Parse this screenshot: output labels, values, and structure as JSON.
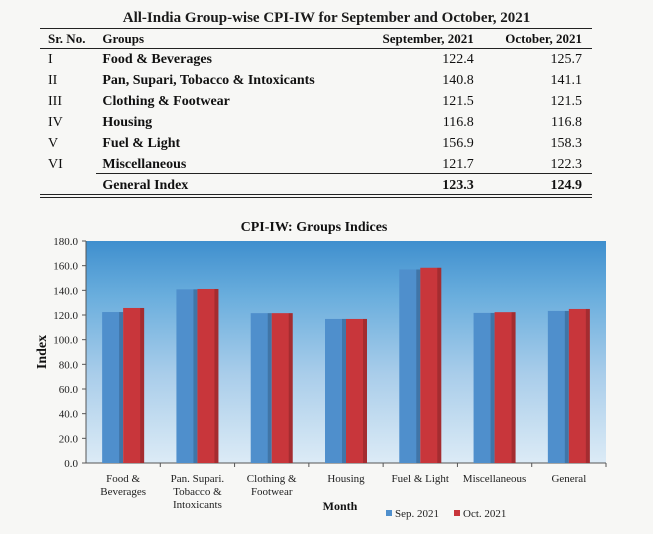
{
  "document": {
    "title": "All-India Group-wise CPI-IW for September and October, 2021"
  },
  "table": {
    "headers": [
      "Sr. No.",
      "Groups",
      "September, 2021",
      "October, 2021"
    ],
    "rows": [
      {
        "sr": "I",
        "group": "Food & Beverages",
        "sep": "122.4",
        "oct": "125.7"
      },
      {
        "sr": "II",
        "group": "Pan, Supari, Tobacco & Intoxicants",
        "sep": "140.8",
        "oct": "141.1"
      },
      {
        "sr": "III",
        "group": "Clothing & Footwear",
        "sep": "121.5",
        "oct": "121.5"
      },
      {
        "sr": "IV",
        "group": "Housing",
        "sep": "116.8",
        "oct": "116.8"
      },
      {
        "sr": "V",
        "group": "Fuel & Light",
        "sep": "156.9",
        "oct": "158.3"
      },
      {
        "sr": "VI",
        "group": "Miscellaneous",
        "sep": "121.7",
        "oct": "122.3"
      }
    ],
    "total": {
      "group": "General Index",
      "sep": "123.3",
      "oct": "124.9"
    }
  },
  "chart_data": {
    "type": "bar",
    "title": "CPI-IW: Groups Indices",
    "xlabel": "Month",
    "ylabel": "Index",
    "ylim": [
      0,
      180
    ],
    "yticks": [
      "0.0",
      "20.0",
      "40.0",
      "60.0",
      "80.0",
      "100.0",
      "120.0",
      "140.0",
      "160.0",
      "180.0"
    ],
    "categories": [
      [
        "Food &",
        "Beverages"
      ],
      [
        "Pan. Supari.",
        "Tobacco &",
        "Intoxicants"
      ],
      [
        "Clothing &",
        "Footwear"
      ],
      [
        "Housing"
      ],
      [
        "Fuel & Light"
      ],
      [
        "Miscellaneous"
      ],
      [
        "General"
      ]
    ],
    "series": [
      {
        "name": "Sep. 2021",
        "color": "#4f8fcc",
        "values": [
          122.4,
          140.8,
          121.5,
          116.8,
          156.9,
          121.7,
          123.3
        ]
      },
      {
        "name": "Oct. 2021",
        "color": "#c8363b",
        "values": [
          125.7,
          141.1,
          121.5,
          116.8,
          158.3,
          122.3,
          124.9
        ]
      }
    ],
    "legend_position": "bottom-right",
    "grid": false,
    "background": "sky-gradient"
  }
}
